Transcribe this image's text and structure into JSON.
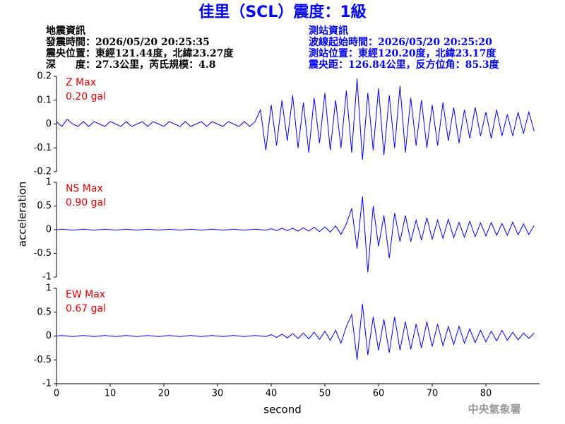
{
  "header": {
    "title": "佳里（SCL）震度：1級",
    "left": [
      "地震資訊",
      "發震時間：2026/05/20 20:25:35",
      "震央位置：東經121.44度，北緯23.27度",
      "深　　度：27.3公里，芮氏規模：4.8"
    ],
    "right": [
      "測站資訊",
      "波線起始時間：2026/05/20 20:25:20",
      "測站位置：東經120.20度，北緯23.17度",
      "震央距：126.84公里，反方位角：85.3度"
    ]
  },
  "footer": "中央氣象署",
  "chart_data": [
    {
      "type": "line",
      "annotations": [
        "Z Max",
        "0.20 gal"
      ],
      "color": "#0000ff",
      "xlim": [
        0,
        90
      ],
      "ylim": [
        -0.2,
        0.2
      ],
      "yticks": [
        -0.2,
        -0.1,
        0,
        0.1,
        0.2
      ],
      "x": [
        0,
        1,
        2,
        3,
        4,
        5,
        6,
        7,
        8,
        9,
        10,
        11,
        12,
        13,
        14,
        15,
        16,
        17,
        18,
        19,
        20,
        21,
        22,
        23,
        24,
        25,
        26,
        27,
        28,
        29,
        30,
        31,
        32,
        33,
        34,
        35,
        36,
        37,
        38,
        39,
        40,
        41,
        42,
        43,
        44,
        45,
        46,
        47,
        48,
        49,
        50,
        51,
        52,
        53,
        54,
        55,
        56,
        57,
        58,
        59,
        60,
        61,
        62,
        63,
        64,
        65,
        66,
        67,
        68,
        69,
        70,
        71,
        72,
        73,
        74,
        75,
        76,
        77,
        78,
        79,
        80,
        81,
        82,
        83,
        84,
        85,
        86,
        87,
        88,
        89
      ],
      "values": [
        0.01,
        -0.01,
        0.02,
        0,
        -0.01,
        0.01,
        -0.01,
        0.01,
        0,
        -0.01,
        0.01,
        0,
        -0.01,
        0.01,
        -0.01,
        0,
        0.01,
        -0.01,
        0.01,
        0,
        -0.01,
        0.01,
        0,
        -0.01,
        0.01,
        -0.01,
        0,
        0.01,
        -0.01,
        0.01,
        0,
        -0.01,
        0.01,
        0,
        -0.01,
        0.01,
        -0.01,
        0.01,
        0.06,
        -0.11,
        0.08,
        -0.09,
        0.1,
        -0.07,
        0.12,
        -0.1,
        0.09,
        -0.12,
        0.11,
        -0.08,
        0.13,
        -0.11,
        0.1,
        -0.1,
        0.14,
        -0.12,
        0.19,
        -0.15,
        0.13,
        -0.11,
        0.15,
        -0.13,
        0.12,
        -0.1,
        0.16,
        -0.12,
        0.11,
        -0.09,
        0.1,
        -0.1,
        0.08,
        -0.09,
        0.09,
        -0.07,
        0.07,
        -0.08,
        0.06,
        -0.06,
        0.07,
        -0.05,
        0.05,
        -0.06,
        0.06,
        -0.05,
        0.04,
        -0.05,
        0.05,
        -0.04,
        0.05,
        -0.03
      ]
    },
    {
      "type": "line",
      "annotations": [
        "NS Max",
        "0.90 gal"
      ],
      "color": "#0000ff",
      "ylabel": "acceleration",
      "xlim": [
        0,
        90
      ],
      "ylim": [
        -1,
        1
      ],
      "yticks": [
        -1,
        -0.5,
        0,
        0.5,
        1
      ],
      "x": [
        0,
        1,
        2,
        3,
        4,
        5,
        6,
        7,
        8,
        9,
        10,
        11,
        12,
        13,
        14,
        15,
        16,
        17,
        18,
        19,
        20,
        21,
        22,
        23,
        24,
        25,
        26,
        27,
        28,
        29,
        30,
        31,
        32,
        33,
        34,
        35,
        36,
        37,
        38,
        39,
        40,
        41,
        42,
        43,
        44,
        45,
        46,
        47,
        48,
        49,
        50,
        51,
        52,
        53,
        54,
        55,
        56,
        57,
        58,
        59,
        60,
        61,
        62,
        63,
        64,
        65,
        66,
        67,
        68,
        69,
        70,
        71,
        72,
        73,
        74,
        75,
        76,
        77,
        78,
        79,
        80,
        81,
        82,
        83,
        84,
        85,
        86,
        87,
        88,
        89
      ],
      "values": [
        0,
        0.01,
        0,
        -0.01,
        0,
        0.01,
        0,
        -0.01,
        0,
        0.01,
        0,
        -0.01,
        0,
        0.01,
        0,
        -0.01,
        0,
        0.01,
        0,
        -0.01,
        0,
        0.01,
        0,
        -0.01,
        0,
        0.01,
        0,
        -0.01,
        0,
        0.01,
        0,
        -0.01,
        0,
        0.01,
        0,
        -0.01,
        0,
        0.01,
        0,
        -0.01,
        0.02,
        -0.02,
        0.03,
        -0.02,
        0.03,
        -0.03,
        0.04,
        -0.03,
        0.05,
        -0.04,
        0.06,
        -0.05,
        0.08,
        -0.1,
        0.12,
        0.45,
        -0.4,
        0.7,
        -0.9,
        0.5,
        -0.35,
        0.3,
        -0.6,
        0.35,
        -0.25,
        0.3,
        -0.25,
        0.2,
        -0.22,
        0.25,
        -0.2,
        0.2,
        -0.18,
        0.22,
        -0.17,
        0.15,
        -0.16,
        0.18,
        -0.15,
        0.14,
        -0.13,
        0.15,
        -0.12,
        0.13,
        -0.12,
        0.16,
        -0.11,
        0.12,
        -0.1,
        0.09
      ]
    },
    {
      "type": "line",
      "annotations": [
        "EW Max",
        "0.67 gal"
      ],
      "color": "#0000ff",
      "xlabel": "second",
      "xlim": [
        0,
        90
      ],
      "xticks": [
        0,
        10,
        20,
        30,
        40,
        50,
        60,
        70,
        80
      ],
      "ylim": [
        -1,
        1
      ],
      "yticks": [
        -1,
        -0.5,
        0,
        0.5,
        1
      ],
      "x": [
        0,
        1,
        2,
        3,
        4,
        5,
        6,
        7,
        8,
        9,
        10,
        11,
        12,
        13,
        14,
        15,
        16,
        17,
        18,
        19,
        20,
        21,
        22,
        23,
        24,
        25,
        26,
        27,
        28,
        29,
        30,
        31,
        32,
        33,
        34,
        35,
        36,
        37,
        38,
        39,
        40,
        41,
        42,
        43,
        44,
        45,
        46,
        47,
        48,
        49,
        50,
        51,
        52,
        53,
        54,
        55,
        56,
        57,
        58,
        59,
        60,
        61,
        62,
        63,
        64,
        65,
        66,
        67,
        68,
        69,
        70,
        71,
        72,
        73,
        74,
        75,
        76,
        77,
        78,
        79,
        80,
        81,
        82,
        83,
        84,
        85,
        86,
        87,
        88,
        89
      ],
      "values": [
        0,
        0.01,
        0,
        -0.01,
        0,
        0.01,
        0,
        -0.01,
        0,
        0.01,
        0,
        -0.01,
        0,
        0.01,
        0,
        -0.01,
        0,
        0.01,
        0,
        -0.01,
        0,
        0.01,
        0,
        -0.01,
        0,
        0.01,
        0,
        -0.01,
        0,
        0.01,
        0,
        -0.01,
        0,
        0.01,
        0,
        -0.01,
        0,
        0.01,
        0,
        -0.01,
        0.03,
        -0.03,
        0.04,
        -0.04,
        0.05,
        -0.05,
        0.06,
        -0.06,
        0.08,
        -0.07,
        0.1,
        -0.09,
        0.12,
        -0.15,
        0.2,
        0.45,
        -0.5,
        0.67,
        -0.4,
        0.4,
        -0.3,
        0.35,
        -0.35,
        0.4,
        -0.3,
        0.3,
        -0.28,
        0.25,
        -0.25,
        0.3,
        -0.22,
        0.25,
        -0.2,
        0.2,
        -0.18,
        0.2,
        -0.15,
        0.15,
        -0.14,
        0.12,
        -0.12,
        0.1,
        -0.1,
        0.12,
        -0.09,
        0.08,
        -0.08,
        0.06,
        -0.05,
        0.06
      ]
    }
  ]
}
